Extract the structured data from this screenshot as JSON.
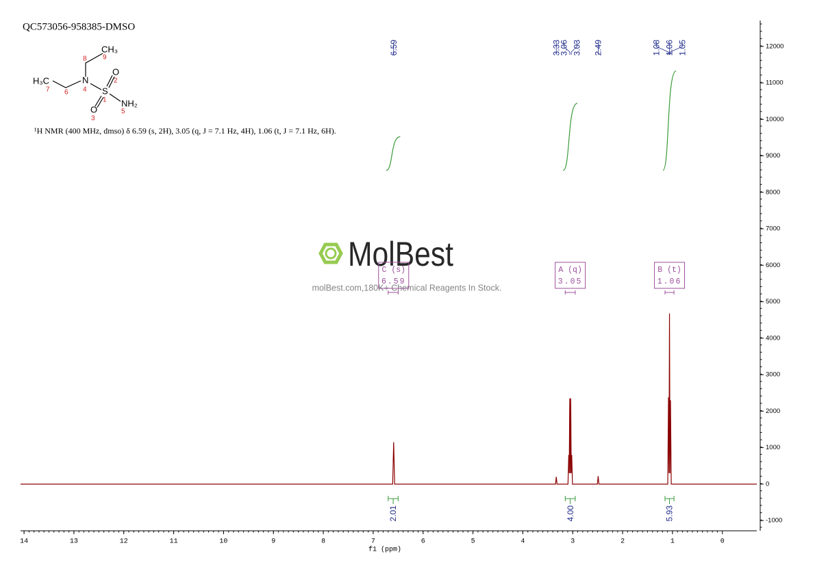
{
  "chart_data": {
    "type": "nmr",
    "title": "QC573056-958385-DMSO",
    "description": "¹H NMR (400 MHz, dmso) δ 6.59 (s, 2H), 3.05 (q, J = 7.1 Hz, 4H), 1.06 (t, J = 7.1 Hz, 6H).",
    "xlabel": "f1 (ppm)",
    "xlim": [
      14.07,
      -0.69
    ],
    "xticks": [
      14,
      13,
      12,
      11,
      10,
      9,
      8,
      7,
      6,
      5,
      4,
      3,
      2,
      1,
      0
    ],
    "ylim": [
      -1280,
      12710
    ],
    "yticks": [
      -1000,
      0,
      1000,
      2000,
      3000,
      4000,
      5000,
      6000,
      7000,
      8000,
      9000,
      10000,
      11000,
      12000
    ],
    "color": "#8b0000",
    "x": [
      14.07,
      6.61,
      6.59,
      6.57,
      3.345,
      3.33,
      3.315,
      3.095,
      3.08,
      3.07,
      3.06,
      3.05,
      3.04,
      3.03,
      3.02,
      3.005,
      2.505,
      2.49,
      2.475,
      1.095,
      1.08,
      1.07,
      1.06,
      1.05,
      1.04,
      1.025,
      0.0,
      -0.69
    ],
    "values": [
      0,
      0,
      1150,
      0,
      0,
      200,
      0,
      0,
      800,
      300,
      2350,
      300,
      2350,
      300,
      800,
      0,
      0,
      220,
      0,
      0,
      2380,
      300,
      4680,
      300,
      2300,
      0,
      0,
      0
    ],
    "peaks": [
      6.59,
      3.33,
      3.06,
      3.03,
      2.49,
      1.08,
      1.06,
      1.05
    ],
    "peak_color": "#1f2a8a",
    "integral_color": "#3a9a3a",
    "integrals": [
      {
        "range": [
          6.7,
          6.5
        ],
        "value": 2.01,
        "label": "2.01"
      },
      {
        "range": [
          3.15,
          2.95
        ],
        "value": 4,
        "label": "4.00"
      },
      {
        "range": [
          1.15,
          0.97
        ],
        "value": 5.93,
        "label": "5.93"
      }
    ],
    "multiplet_color": "#9b4f9b",
    "multiplets": [
      {
        "name": "C (s)",
        "shift": 6.59,
        "range": [
          6.7,
          6.5
        ]
      },
      {
        "name": "A (q)",
        "shift": 3.05,
        "range": [
          3.15,
          2.95
        ]
      },
      {
        "name": "B (t)",
        "shift": 1.06,
        "range": [
          1.15,
          0.97
        ]
      }
    ]
  },
  "structure": {
    "atoms": [
      "CH₃",
      "H₃C",
      "N",
      "S",
      "O",
      "O",
      "NH₂"
    ],
    "numbers": [
      "8",
      "9",
      "7",
      "6",
      "4",
      "2",
      "1",
      "5",
      "3"
    ]
  },
  "watermark": {
    "brand": "MolBest",
    "tagline": "molBest.com,180K+ Chemical Reagents In Stock."
  }
}
